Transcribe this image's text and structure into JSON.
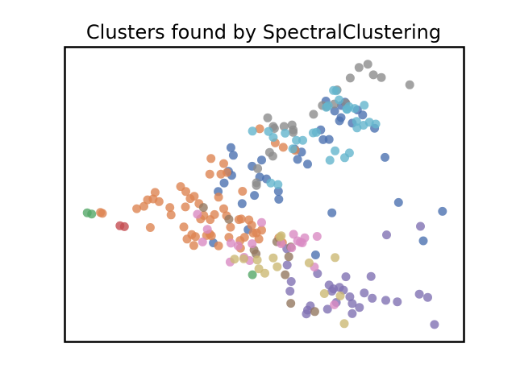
{
  "chart_data": {
    "type": "scatter",
    "title": "Clusters found by SpectralClustering",
    "xlabel": "",
    "ylabel": "",
    "xlim": [
      0,
      100
    ],
    "ylim": [
      0,
      100
    ],
    "grid": false,
    "axes_ticks": false,
    "legend": "none",
    "point_alpha": 0.8,
    "series": [
      {
        "color": "#4c72b0",
        "points": [
          [
            41.6,
            65.9
          ],
          [
            42.2,
            63.3
          ],
          [
            41.0,
            57.9
          ],
          [
            41.8,
            56.5
          ],
          [
            46.9,
            59.6
          ],
          [
            48.8,
            55.9
          ],
          [
            50.5,
            55.3
          ],
          [
            49.3,
            61.7
          ],
          [
            47.5,
            49.7
          ],
          [
            53.6,
            48.4
          ],
          [
            53.5,
            51.1
          ],
          [
            58.3,
            61.9
          ],
          [
            59.3,
            64.4
          ],
          [
            57.6,
            65.4
          ],
          [
            60.8,
            60.3
          ],
          [
            64.1,
            71.9
          ],
          [
            64.7,
            68.6
          ],
          [
            65.4,
            81.7
          ],
          [
            68.8,
            75.0
          ],
          [
            67.6,
            78.3
          ],
          [
            70.2,
            81.3
          ],
          [
            69.3,
            80.2
          ],
          [
            69.2,
            76.1
          ],
          [
            73.3,
            78.7
          ],
          [
            74.6,
            77.0
          ],
          [
            72.0,
            74.2
          ],
          [
            77.6,
            72.5
          ],
          [
            80.2,
            62.6
          ],
          [
            83.6,
            47.3
          ],
          [
            66.9,
            43.8
          ],
          [
            66.2,
            68.7
          ],
          [
            39.9,
            53.9
          ],
          [
            38.4,
            51.0
          ],
          [
            44.4,
            46.9
          ],
          [
            37.2,
            33.6
          ],
          [
            45.9,
            38.1
          ],
          [
            62.8,
            29.5
          ],
          [
            89.8,
            34.3
          ],
          [
            94.6,
            44.3
          ]
        ]
      },
      {
        "color": "#dd8452",
        "points": [
          [
            9.4,
            43.6
          ],
          [
            8.9,
            43.9
          ],
          [
            18.0,
            45.2
          ],
          [
            19.8,
            46.0
          ],
          [
            20.7,
            48.2
          ],
          [
            22.1,
            48.5
          ],
          [
            22.6,
            50.7
          ],
          [
            23.6,
            47.6
          ],
          [
            29.0,
            52.7
          ],
          [
            30.3,
            51.0
          ],
          [
            31.4,
            48.6
          ],
          [
            30.2,
            45.8
          ],
          [
            26.3,
            45.6
          ],
          [
            26.6,
            43.1
          ],
          [
            32.4,
            49.4
          ],
          [
            33.6,
            46.9
          ],
          [
            34.0,
            41.7
          ],
          [
            34.8,
            42.9
          ],
          [
            36.4,
            41.5
          ],
          [
            31.8,
            36.4
          ],
          [
            29.8,
            39.0
          ],
          [
            30.6,
            34.9
          ],
          [
            32.7,
            35.7
          ],
          [
            32.3,
            32.7
          ],
          [
            35.5,
            36.1
          ],
          [
            36.3,
            36.6
          ],
          [
            36.7,
            36.0
          ],
          [
            38.5,
            32.6
          ],
          [
            41.1,
            35.5
          ],
          [
            41.5,
            38.9
          ],
          [
            43.9,
            34.4
          ],
          [
            43.6,
            41.5
          ],
          [
            46.1,
            41.4
          ],
          [
            46.8,
            39.6
          ],
          [
            47.2,
            36.9
          ],
          [
            48.0,
            37.0
          ],
          [
            49.3,
            37.9
          ],
          [
            48.6,
            34.9
          ],
          [
            44.0,
            31.8
          ],
          [
            45.0,
            35.5
          ],
          [
            44.5,
            51.1
          ],
          [
            40.6,
            57.5
          ],
          [
            39.8,
            60.5
          ],
          [
            36.6,
            62.2
          ],
          [
            36.3,
            56.9
          ],
          [
            39.1,
            56.9
          ],
          [
            48.8,
            72.3
          ],
          [
            52.7,
            67.5
          ],
          [
            54.7,
            66.0
          ],
          [
            57.7,
            65.0
          ],
          [
            21.4,
            38.8
          ],
          [
            44.2,
            41.7
          ],
          [
            38.5,
            49.1
          ],
          [
            39.8,
            45.2
          ],
          [
            37.5,
            43.2
          ],
          [
            40.5,
            42.8
          ],
          [
            53.6,
            35.3
          ],
          [
            54.5,
            33.7
          ]
        ]
      },
      {
        "color": "#55a868",
        "points": [
          [
            5.6,
            43.8
          ],
          [
            6.7,
            43.4
          ],
          [
            47.0,
            22.8
          ]
        ]
      },
      {
        "color": "#c44e52",
        "points": [
          [
            13.8,
            39.4
          ],
          [
            14.9,
            39.1
          ]
        ]
      },
      {
        "color": "#8172b3",
        "points": [
          [
            55.6,
            31.6
          ],
          [
            55.7,
            26.1
          ],
          [
            56.7,
            20.5
          ],
          [
            56.4,
            17.2
          ],
          [
            63.3,
            23.2
          ],
          [
            66.2,
            19.3
          ],
          [
            66.9,
            17.2
          ],
          [
            67.3,
            18.0
          ],
          [
            68.8,
            18.5
          ],
          [
            70.4,
            22.1
          ],
          [
            69.8,
            17.6
          ],
          [
            71.4,
            15.3
          ],
          [
            68.0,
            13.4
          ],
          [
            60.8,
            10.8
          ],
          [
            60.5,
            9.5
          ],
          [
            61.5,
            12.2
          ],
          [
            72.0,
            9.6
          ],
          [
            72.0,
            13.0
          ],
          [
            65.8,
            11.1
          ],
          [
            73.8,
            11.7
          ],
          [
            75.0,
            16.6
          ],
          [
            76.7,
            22.2
          ],
          [
            77.0,
            14.8
          ],
          [
            80.4,
            14.1
          ],
          [
            83.3,
            13.6
          ],
          [
            90.9,
            15.1
          ],
          [
            89.1,
            39.2
          ],
          [
            80.6,
            36.3
          ],
          [
            88.8,
            16.2
          ],
          [
            92.6,
            5.9
          ]
        ]
      },
      {
        "color": "#937860",
        "points": [
          [
            34.7,
            45.6
          ],
          [
            41.1,
            41.6
          ],
          [
            47.4,
            31.2
          ],
          [
            53.1,
            34.0
          ],
          [
            56.6,
            32.2
          ],
          [
            56.1,
            28.9
          ],
          [
            47.9,
            29.9
          ],
          [
            55.2,
            22.8
          ],
          [
            56.6,
            13.1
          ],
          [
            62.6,
            10.3
          ]
        ]
      },
      {
        "color": "#da8bc3",
        "points": [
          [
            33.2,
            43.3
          ],
          [
            35.7,
            38.2
          ],
          [
            34.5,
            33.9
          ],
          [
            41.6,
            33.5
          ],
          [
            41.4,
            27.1
          ],
          [
            46.3,
            27.6
          ],
          [
            44.9,
            28.7
          ],
          [
            43.4,
            32.6
          ],
          [
            46.9,
            33.3
          ],
          [
            54.2,
            33.3
          ],
          [
            58.3,
            34.3
          ],
          [
            59.5,
            33.6
          ],
          [
            49.3,
            40.5
          ],
          [
            59.0,
            33.8
          ],
          [
            56.8,
            31.9
          ],
          [
            57.3,
            36.5
          ],
          [
            60.1,
            35.3
          ],
          [
            63.2,
            35.8
          ],
          [
            62.5,
            25.4
          ],
          [
            67.5,
            12.6
          ]
        ]
      },
      {
        "color": "#ccb974",
        "points": [
          [
            42.5,
            28.1
          ],
          [
            44.8,
            28.2
          ],
          [
            48.2,
            27.8
          ],
          [
            48.6,
            24.8
          ],
          [
            50.1,
            23.3
          ],
          [
            52.2,
            28.5
          ],
          [
            53.2,
            25.5
          ],
          [
            53.9,
            35.6
          ],
          [
            54.2,
            36.0
          ],
          [
            61.2,
            26.8
          ],
          [
            65.0,
            16.4
          ],
          [
            67.7,
            28.6
          ],
          [
            69.0,
            15.6
          ],
          [
            70.0,
            6.2
          ]
        ]
      },
      {
        "color": "#8c8c8c",
        "points": [
          [
            48.0,
            54.0
          ],
          [
            50.8,
            76.0
          ],
          [
            52.2,
            73.1
          ],
          [
            54.9,
            73.1
          ],
          [
            56.9,
            73.6
          ],
          [
            57.2,
            71.9
          ],
          [
            62.3,
            77.2
          ],
          [
            64.5,
            80.2
          ],
          [
            65.6,
            79.8
          ],
          [
            68.2,
            85.5
          ],
          [
            71.5,
            89.5
          ],
          [
            73.7,
            93.1
          ],
          [
            75.9,
            94.2
          ],
          [
            77.3,
            90.6
          ],
          [
            79.3,
            89.7
          ],
          [
            86.4,
            87.2
          ],
          [
            70.4,
            81.0
          ],
          [
            67.5,
            80.7
          ],
          [
            57.2,
            71.1
          ],
          [
            52.5,
            72.4
          ],
          [
            51.3,
            64.3
          ],
          [
            52.1,
            63.0
          ],
          [
            48.3,
            58.8
          ],
          [
            48.0,
            53.1
          ]
        ]
      },
      {
        "color": "#64b5cd",
        "points": [
          [
            47.0,
            71.5
          ],
          [
            51.0,
            71.4
          ],
          [
            52.2,
            69.4
          ],
          [
            55.2,
            70.8
          ],
          [
            58.0,
            68.4
          ],
          [
            57.1,
            65.5
          ],
          [
            59.6,
            68.4
          ],
          [
            62.2,
            70.9
          ],
          [
            63.0,
            71.1
          ],
          [
            65.5,
            79.6
          ],
          [
            66.0,
            80.1
          ],
          [
            67.3,
            85.3
          ],
          [
            68.0,
            85.2
          ],
          [
            68.7,
            82.1
          ],
          [
            70.7,
            78.9
          ],
          [
            71.2,
            79.8
          ],
          [
            72.6,
            79.2
          ],
          [
            73.1,
            74.8
          ],
          [
            73.2,
            72.6
          ],
          [
            74.8,
            73.5
          ],
          [
            75.0,
            80.3
          ],
          [
            76.3,
            74.5
          ],
          [
            77.9,
            73.9
          ],
          [
            70.6,
            79.0
          ],
          [
            66.4,
            61.6
          ],
          [
            67.7,
            64.8
          ],
          [
            70.1,
            62.5
          ],
          [
            71.3,
            64.1
          ],
          [
            53.4,
            53.4
          ],
          [
            51.6,
            53.9
          ]
        ]
      }
    ]
  }
}
